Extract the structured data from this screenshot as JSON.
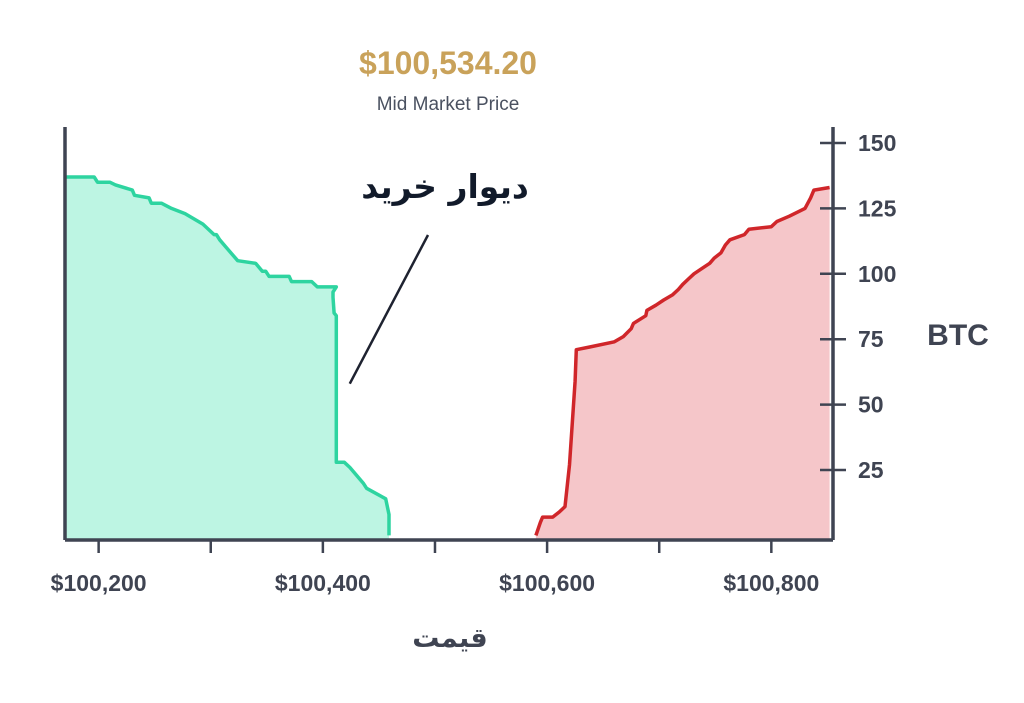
{
  "header": {
    "price": "$100,534.20",
    "subtitle": "Mid Market Price"
  },
  "colors": {
    "price": "#c9a25a",
    "bid_line": "#2ed4a0",
    "bid_fill": "#bdf5e3",
    "ask_line": "#d0262a",
    "ask_fill": "#f5c6c9",
    "axis": "#3f4452"
  },
  "chart_data": {
    "type": "area",
    "xlabel": "قیمت",
    "ylabel": "BTC",
    "xlim": [
      100170,
      100855
    ],
    "ylim": [
      0,
      157
    ],
    "x_ticks": [
      100200,
      100300,
      100400,
      100500,
      100600,
      100700,
      100800
    ],
    "x_tick_labels": [
      "$100,200",
      "$100,400",
      "$100,600",
      "$100,800"
    ],
    "x_tick_labels_at": [
      100200,
      100400,
      100600,
      100800
    ],
    "y_ticks": [
      25,
      50,
      75,
      100,
      125,
      150
    ],
    "y_tick_labels": [
      "25",
      "50",
      "75",
      "100",
      "125",
      "150"
    ],
    "annotation": {
      "text": "دیوار خرید",
      "points_to": [
        100424,
        58
      ]
    },
    "series": [
      {
        "side": "bid",
        "x": [
          100170,
          100196,
          100199,
          100210,
          100215,
          100230,
          100232,
          100245,
          100247,
          100256,
          100265,
          100277,
          100293,
          100303,
          100305,
          100308,
          100314,
          100320,
          100324,
          100340,
          100346,
          100349,
          100352,
          100370,
          100372,
          100390,
          100395,
          100412,
          100409,
          100409,
          100410,
          100412,
          100412,
          100419,
          100424,
          100436,
          100439,
          100456,
          100459,
          100459
        ],
        "y": [
          137,
          137,
          135,
          135,
          134,
          132,
          130,
          129,
          127,
          127,
          125,
          123,
          119,
          115,
          115,
          113,
          110,
          107,
          105,
          104,
          101,
          101,
          99,
          99,
          97,
          97,
          95,
          95,
          93,
          91,
          85,
          84,
          28,
          28,
          26,
          20,
          18,
          14,
          8,
          0
        ]
      },
      {
        "side": "ask",
        "x": [
          100590,
          100594,
          100596,
          100605,
          100611,
          100616,
          100620,
          100625,
          100626,
          100638,
          100660,
          100668,
          100675,
          100677,
          100688,
          100689,
          100697,
          100704,
          100712,
          100717,
          100721,
          100726,
          100731,
          100738,
          100745,
          100749,
          100755,
          100759,
          100763,
          100776,
          100780,
          100800,
          100805,
          100816,
          100830,
          100835,
          100838,
          100852
        ],
        "y": [
          0,
          5,
          7,
          7,
          9,
          11,
          27,
          59,
          71,
          72,
          74,
          76,
          79,
          81,
          84,
          86,
          88,
          90,
          92,
          94,
          96,
          98,
          100,
          102,
          104,
          106,
          108,
          111,
          113,
          115,
          117,
          118,
          120,
          122,
          125,
          129,
          132,
          133
        ]
      }
    ]
  }
}
